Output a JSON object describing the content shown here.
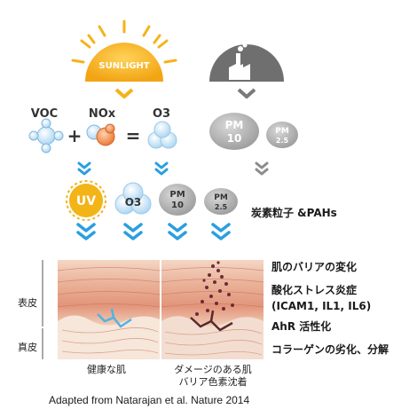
{
  "sunlight": {
    "label": "SUNLIGHT",
    "color": "#f5b21a"
  },
  "factory": {
    "icon": "factory-icon",
    "color": "#6f6f6f"
  },
  "pollutants": {
    "voc": "VOC",
    "nox": "NOx",
    "o3": "O3",
    "plus": "+",
    "equals": "="
  },
  "particles": {
    "pm10": {
      "top": "PM",
      "bottom": "10"
    },
    "pm25": {
      "top": "PM",
      "bottom": "2.5"
    }
  },
  "agents": {
    "uv": "UV",
    "o3": "O3",
    "pm10": {
      "top": "PM",
      "bottom": "10"
    },
    "pm25": {
      "top": "PM",
      "bottom": "2.5"
    },
    "carbon": "炭素粒子 &PAHs"
  },
  "effects": {
    "barrier": "肌のバリアの変化",
    "oxidative": "酸化ストレス炎症",
    "cytokines": "(ICAM1, IL1, IL6)",
    "ahr": "AhR 活性化",
    "collagen": "コラーゲンの劣化、分解"
  },
  "skin_layers": {
    "epidermis": "表皮",
    "dermis": "真皮"
  },
  "captions": {
    "healthy": "健康な肌",
    "damaged_line1": "ダメージのある肌",
    "damaged_line2": "バリア色素沈着"
  },
  "credit": "Adapted from Natarajan et al. Nature 2014",
  "colors": {
    "arrow_blue": "#2a9fe0",
    "arrow_gray": "#8c8c8c",
    "uv_yellow": "#f2b417",
    "skin": "#e9a98f"
  }
}
